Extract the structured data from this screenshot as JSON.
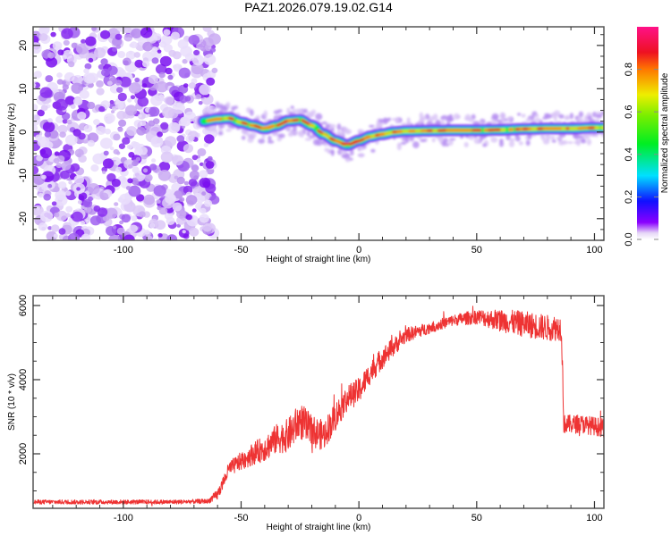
{
  "title": "PAZ1.2026.079.19.02.G14",
  "chart_data": [
    {
      "type": "heatmap",
      "name": "spectrogram",
      "xlabel": "Height of straight line (km)",
      "ylabel": "Frequency (Hz)",
      "xlim": [
        -138.3,
        104
      ],
      "ylim": [
        -25,
        24.3
      ],
      "xticks": [
        -100,
        -50,
        0,
        50,
        100
      ],
      "xtick_labels": [
        "-100",
        "-50",
        "0",
        "50",
        "100"
      ],
      "yticks": [
        -20,
        -10,
        0,
        10,
        20
      ],
      "ytick_labels": [
        "-20",
        "-10",
        "0",
        "10",
        "20"
      ],
      "noise_region_xlim": [
        -138.3,
        -64
      ],
      "ridge": {
        "x": [
          -66,
          -60,
          -55,
          -50,
          -45,
          -40,
          -35,
          -30,
          -25,
          -20,
          -15,
          -10,
          -5,
          0,
          5,
          10,
          15,
          20,
          30,
          40,
          50,
          60,
          70,
          80,
          90,
          100,
          104
        ],
        "y": [
          2.5,
          3,
          3.2,
          2.2,
          1.5,
          0.8,
          1.5,
          2.6,
          2.8,
          1.5,
          -0.5,
          -2,
          -3,
          -2,
          -1,
          -0.5,
          0,
          0.2,
          0.3,
          0.4,
          0.4,
          0.5,
          0.7,
          0.8,
          0.8,
          1,
          1
        ]
      },
      "colorbar": {
        "label": "Normalized spectral amplitude",
        "range": [
          0,
          1
        ],
        "ticks": [
          0,
          0.2,
          0.4,
          0.6,
          0.8
        ],
        "tick_labels": [
          "0.0",
          "0.2",
          "0.4",
          "0.6",
          "0.8"
        ]
      }
    },
    {
      "type": "line",
      "name": "snr",
      "xlabel": "Height of straight line (km)",
      "ylabel": "SNR (10 * v/v)",
      "xlim": [
        -138.3,
        104
      ],
      "ylim": [
        530,
        6265
      ],
      "xticks": [
        -100,
        -50,
        0,
        50,
        100
      ],
      "xtick_labels": [
        "-100",
        "-50",
        "0",
        "50",
        "100"
      ],
      "yticks": [
        2000,
        4000,
        6000
      ],
      "ytick_labels": [
        "2000",
        "4000",
        "6000"
      ],
      "series": [
        {
          "name": "SNR",
          "color": "#ee3333",
          "x": [
            -138,
            -120,
            -100,
            -80,
            -64,
            -60,
            -55,
            -50,
            -45,
            -40,
            -35,
            -30,
            -25,
            -20,
            -15,
            -10,
            -5,
            0,
            5,
            10,
            15,
            20,
            30,
            40,
            50,
            60,
            70,
            80,
            86,
            87,
            95,
            104
          ],
          "y": [
            700,
            700,
            700,
            700,
            720,
            900,
            1600,
            1800,
            2000,
            2150,
            2400,
            2500,
            2900,
            2600,
            2500,
            3000,
            3500,
            3700,
            4200,
            4600,
            4900,
            5200,
            5400,
            5600,
            5700,
            5600,
            5500,
            5400,
            5400,
            2800,
            2800,
            2700
          ],
          "noise_amplitude": [
            60,
            60,
            60,
            60,
            60,
            150,
            200,
            250,
            300,
            350,
            400,
            450,
            500,
            450,
            400,
            400,
            350,
            350,
            300,
            300,
            250,
            200,
            150,
            150,
            200,
            300,
            350,
            350,
            350,
            250,
            250,
            250
          ]
        }
      ]
    }
  ]
}
